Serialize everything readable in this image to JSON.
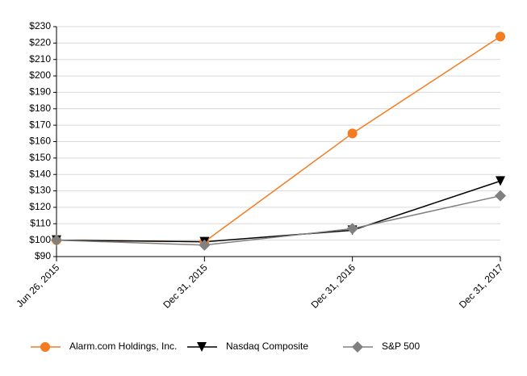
{
  "chart_data": {
    "type": "line",
    "categories": [
      "Jun 26, 2015",
      "Dec 31, 2015",
      "Dec 31, 2016",
      "Dec 31, 2017"
    ],
    "series": [
      {
        "name": "Alarm.com Holdings, Inc.",
        "color": "#f47b20",
        "marker": "circle",
        "values": [
          100,
          99,
          165,
          224
        ]
      },
      {
        "name": "Nasdaq Composite",
        "color": "#000000",
        "marker": "triangle-down",
        "values": [
          100,
          99,
          106,
          136
        ]
      },
      {
        "name": "S&P 500",
        "color": "#808080",
        "marker": "diamond",
        "values": [
          100,
          97,
          107,
          127
        ]
      }
    ],
    "ylim": [
      90,
      230
    ],
    "yticks": [
      {
        "value": 90,
        "label": "$90"
      },
      {
        "value": 100,
        "label": "$100"
      },
      {
        "value": 110,
        "label": "$110"
      },
      {
        "value": 120,
        "label": "$120"
      },
      {
        "value": 130,
        "label": "$130"
      },
      {
        "value": 140,
        "label": "$140"
      },
      {
        "value": 150,
        "label": "$150"
      },
      {
        "value": 160,
        "label": "$160"
      },
      {
        "value": 170,
        "label": "$170"
      },
      {
        "value": 180,
        "label": "$180"
      },
      {
        "value": 190,
        "label": "$190"
      },
      {
        "value": 200,
        "label": "$200"
      },
      {
        "value": 210,
        "label": "$210"
      },
      {
        "value": 220,
        "label": "$220"
      },
      {
        "value": 230,
        "label": "$230"
      }
    ],
    "grid": true,
    "legend": "bottom"
  }
}
